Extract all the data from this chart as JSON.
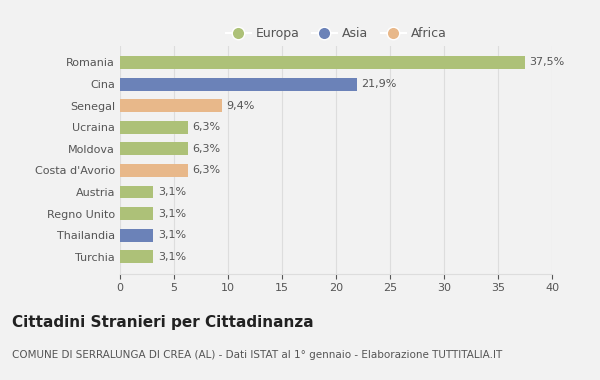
{
  "categories": [
    "Turchia",
    "Thailandia",
    "Regno Unito",
    "Austria",
    "Costa d'Avorio",
    "Moldova",
    "Ucraina",
    "Senegal",
    "Cina",
    "Romania"
  ],
  "values": [
    3.1,
    3.1,
    3.1,
    3.1,
    6.3,
    6.3,
    6.3,
    9.4,
    21.9,
    37.5
  ],
  "labels": [
    "3,1%",
    "3,1%",
    "3,1%",
    "3,1%",
    "6,3%",
    "6,3%",
    "6,3%",
    "9,4%",
    "21,9%",
    "37,5%"
  ],
  "colors": [
    "#adc178",
    "#6b82b8",
    "#adc178",
    "#adc178",
    "#e8b88a",
    "#adc178",
    "#adc178",
    "#e8b88a",
    "#6b82b8",
    "#adc178"
  ],
  "legend_items": [
    {
      "label": "Europa",
      "color": "#adc178"
    },
    {
      "label": "Asia",
      "color": "#6b82b8"
    },
    {
      "label": "Africa",
      "color": "#e8b88a"
    }
  ],
  "xlim": [
    0,
    40
  ],
  "xticks": [
    0,
    5,
    10,
    15,
    20,
    25,
    30,
    35,
    40
  ],
  "title": "Cittadini Stranieri per Cittadinanza",
  "subtitle": "COMUNE DI SERRALUNGA DI CREA (AL) - Dati ISTAT al 1° gennaio - Elaborazione TUTTITALIA.IT",
  "background_color": "#f2f2f2",
  "grid_color": "#dddddd",
  "title_fontsize": 11,
  "subtitle_fontsize": 7.5,
  "label_fontsize": 8,
  "tick_fontsize": 8,
  "legend_fontsize": 9
}
